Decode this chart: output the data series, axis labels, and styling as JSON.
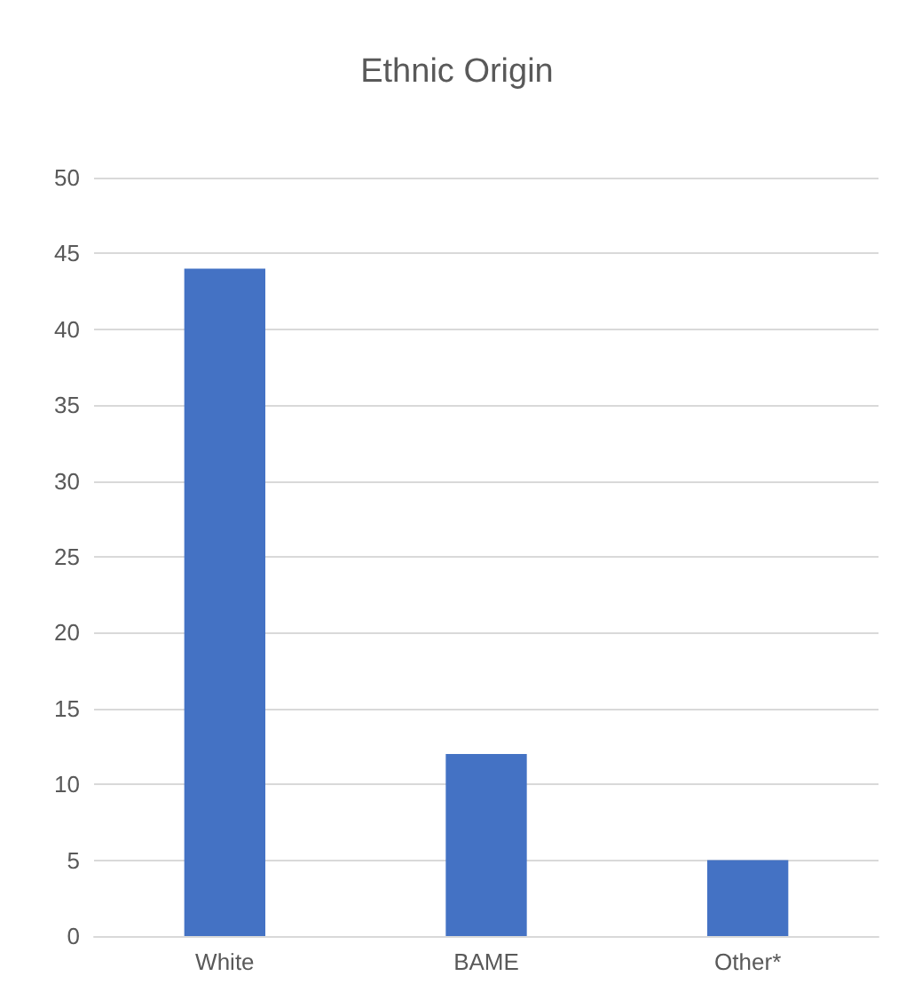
{
  "chart_data": {
    "type": "bar",
    "title": "Ethnic Origin",
    "categories": [
      "White",
      "BAME",
      "Other*"
    ],
    "values": [
      44,
      12,
      5
    ],
    "color": "#4472c4",
    "ylim": [
      0,
      50
    ],
    "yticks": [
      0,
      5,
      10,
      15,
      20,
      25,
      30,
      35,
      40,
      45,
      50
    ],
    "grid": "y"
  }
}
